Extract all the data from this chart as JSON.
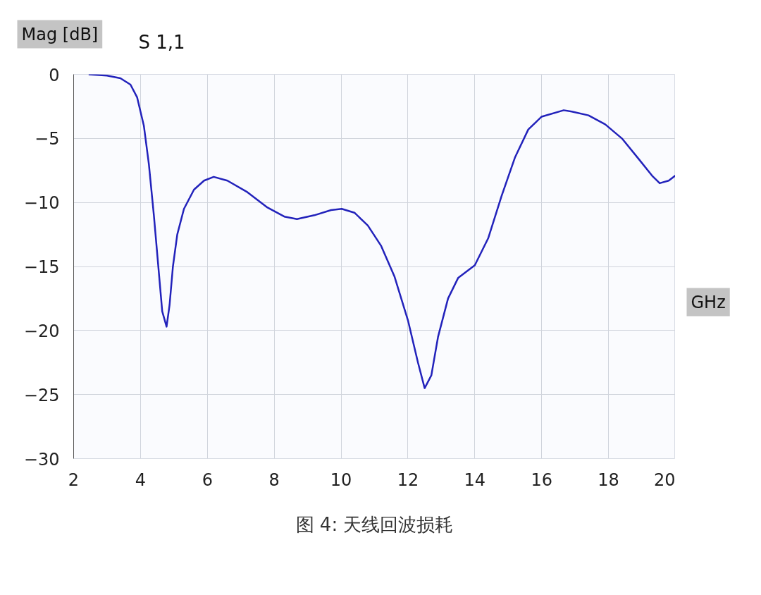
{
  "chart_data": {
    "type": "line",
    "title": "S 1,1",
    "ylabel": "Mag [dB]",
    "xlabel": "GHz",
    "annotations": [
      "图 4: 天线回波损耗"
    ],
    "xlim": [
      2,
      20
    ],
    "ylim": [
      -30,
      0
    ],
    "xticks": [
      2,
      4,
      6,
      8,
      10,
      12,
      14,
      16,
      18,
      20
    ],
    "yticks": [
      0,
      -5,
      -10,
      -15,
      -20,
      -25,
      -30
    ],
    "grid": true,
    "marker": "none",
    "line_style": "solid",
    "series": [
      {
        "color": "#2222bb",
        "x": [
          2.45,
          3.0,
          3.4,
          3.7,
          3.9,
          4.1,
          4.25,
          4.4,
          4.55,
          4.65,
          4.78,
          4.87,
          4.97,
          5.1,
          5.3,
          5.6,
          5.9,
          6.19,
          6.6,
          7.2,
          7.8,
          8.3,
          8.68,
          9.2,
          9.7,
          10.02,
          10.4,
          10.8,
          11.2,
          11.6,
          12.0,
          12.3,
          12.5,
          12.7,
          12.9,
          13.2,
          13.5,
          14.0,
          14.4,
          14.8,
          15.2,
          15.6,
          16.0,
          16.66,
          16.9,
          17.4,
          17.9,
          18.4,
          18.9,
          19.3,
          19.53,
          19.8,
          20.0
        ],
        "values": [
          0,
          -0.1,
          -0.3,
          -0.8,
          -1.8,
          -4,
          -7,
          -11,
          -15.5,
          -18.5,
          -19.7,
          -18,
          -15,
          -12.5,
          -10.5,
          -9,
          -8.3,
          -8.0,
          -8.3,
          -9.2,
          -10.4,
          -11.1,
          -11.3,
          -11.0,
          -10.6,
          -10.5,
          -10.8,
          -11.8,
          -13.4,
          -15.8,
          -19.2,
          -22.5,
          -24.5,
          -23.5,
          -20.5,
          -17.5,
          -15.9,
          -14.9,
          -12.8,
          -9.5,
          -6.5,
          -4.3,
          -3.3,
          -2.8,
          -2.9,
          -3.2,
          -3.9,
          -5.0,
          -6.6,
          -7.9,
          -8.5,
          -8.3,
          -7.9
        ]
      }
    ]
  }
}
